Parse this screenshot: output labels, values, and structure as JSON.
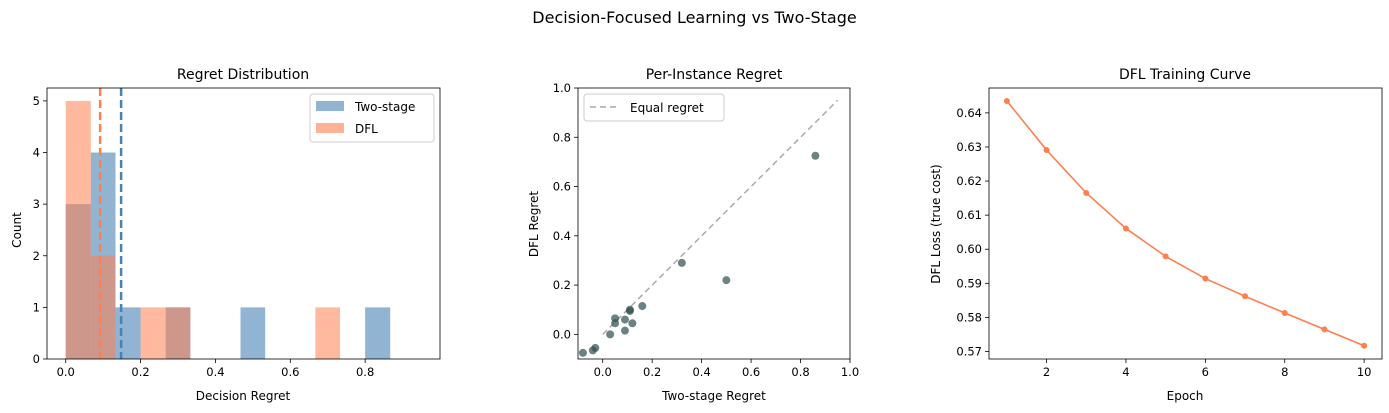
{
  "suptitle": "Decision-Focused Learning vs Two-Stage",
  "chart_data": [
    {
      "type": "bar",
      "title": "Regret Distribution",
      "xlabel": "Decision Regret",
      "ylabel": "Count",
      "xlim": [
        -0.05,
        1.0
      ],
      "ylim": [
        0,
        5.25
      ],
      "xticks": [
        "0.0",
        "0.2",
        "0.4",
        "0.6",
        "0.8"
      ],
      "yticks": [
        "0",
        "1",
        "2",
        "3",
        "4",
        "5"
      ],
      "legend_position": "top-right",
      "series": [
        {
          "name": "Two-stage",
          "color": "#4682b4",
          "bin_edges": [
            0.0,
            0.067,
            0.133,
            0.2,
            0.267,
            0.333,
            0.4,
            0.467,
            0.533,
            0.6,
            0.667,
            0.733,
            0.8,
            0.867
          ],
          "counts": [
            3,
            4,
            1,
            0,
            1,
            0,
            0,
            1,
            0,
            0,
            0,
            0,
            1
          ],
          "mean": 0.148
        },
        {
          "name": "DFL",
          "color": "#ff7f50",
          "bin_edges": [
            0.0,
            0.067,
            0.133,
            0.2,
            0.267,
            0.333,
            0.4,
            0.467,
            0.533,
            0.6,
            0.667,
            0.733
          ],
          "counts": [
            5,
            2,
            0,
            1,
            1,
            0,
            0,
            0,
            0,
            0,
            1
          ],
          "mean": 0.092
        }
      ]
    },
    {
      "type": "scatter",
      "title": "Per-Instance Regret",
      "xlabel": "Two-stage Regret",
      "ylabel": "DFL Regret",
      "xlim": [
        -0.1,
        1.0
      ],
      "ylim": [
        -0.1,
        1.0
      ],
      "xticks": [
        "0.0",
        "0.2",
        "0.4",
        "0.6",
        "0.8",
        "1.0"
      ],
      "yticks": [
        "0.0",
        "0.2",
        "0.4",
        "0.6",
        "0.8",
        "1.0"
      ],
      "point_color": "#2f4f4f",
      "points": [
        [
          -0.08,
          -0.075
        ],
        [
          -0.04,
          -0.065
        ],
        [
          -0.03,
          -0.055
        ],
        [
          0.03,
          0.0
        ],
        [
          0.05,
          0.065
        ],
        [
          0.05,
          0.045
        ],
        [
          0.09,
          0.015
        ],
        [
          0.09,
          0.06
        ],
        [
          0.11,
          0.1
        ],
        [
          0.11,
          0.095
        ],
        [
          0.12,
          0.045
        ],
        [
          0.16,
          0.115
        ],
        [
          0.32,
          0.29
        ],
        [
          0.5,
          0.22
        ],
        [
          0.86,
          0.725
        ]
      ],
      "reference_line": {
        "name": "Equal regret",
        "from": [
          0.0,
          0.0
        ],
        "to": [
          0.95,
          0.95
        ],
        "color": "#aaaaaa"
      },
      "legend_position": "top-left"
    },
    {
      "type": "line",
      "title": "DFL Training Curve",
      "xlabel": "Epoch",
      "ylabel": "DFL Loss (true cost)",
      "xlim": [
        0.55,
        10.45
      ],
      "ylim": [
        0.5678,
        0.6473
      ],
      "xticks": [
        "2",
        "4",
        "6",
        "8",
        "10"
      ],
      "yticks": [
        "0.57",
        "0.58",
        "0.59",
        "0.60",
        "0.61",
        "0.62",
        "0.63",
        "0.64"
      ],
      "color": "#ff7f50",
      "x": [
        1,
        2,
        3,
        4,
        5,
        6,
        7,
        8,
        9,
        10
      ],
      "y": [
        0.6435,
        0.6291,
        0.6165,
        0.6061,
        0.5979,
        0.5914,
        0.5862,
        0.5813,
        0.5765,
        0.5717
      ]
    }
  ]
}
